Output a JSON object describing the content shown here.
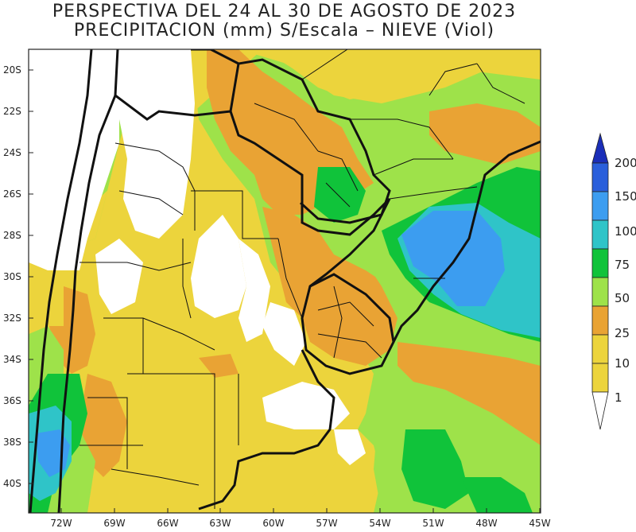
{
  "title": {
    "line1": "PERSPECTIVA DEL 24 AL 30 DE AGOSTO DE 2023",
    "line2": "PRECIPITACION (mm) S/Escala – NIEVE (Viol)"
  },
  "map": {
    "lon_range": [
      -74,
      -45
    ],
    "lat_range": [
      -42,
      -19
    ],
    "lat_ticks": [
      "20S",
      "22S",
      "24S",
      "26S",
      "28S",
      "30S",
      "32S",
      "34S",
      "36S",
      "38S",
      "40S"
    ],
    "lon_ticks": [
      "72W",
      "69W",
      "66W",
      "63W",
      "60W",
      "57W",
      "54W",
      "51W",
      "48W",
      "45W"
    ]
  },
  "legend": {
    "labels": [
      "200",
      "150",
      "100",
      "75",
      "50",
      "25",
      "10",
      "1"
    ],
    "colors": {
      "snow": "#1a2eb8",
      "mm200": "#2a5fdb",
      "mm150": "#3c9df0",
      "mm100": "#2fc4c8",
      "mm75": "#10c33a",
      "mm50": "#9ee24a",
      "mm25": "#e9a334",
      "mm10": "#ecd43c",
      "mm1": "#ffffff"
    }
  }
}
